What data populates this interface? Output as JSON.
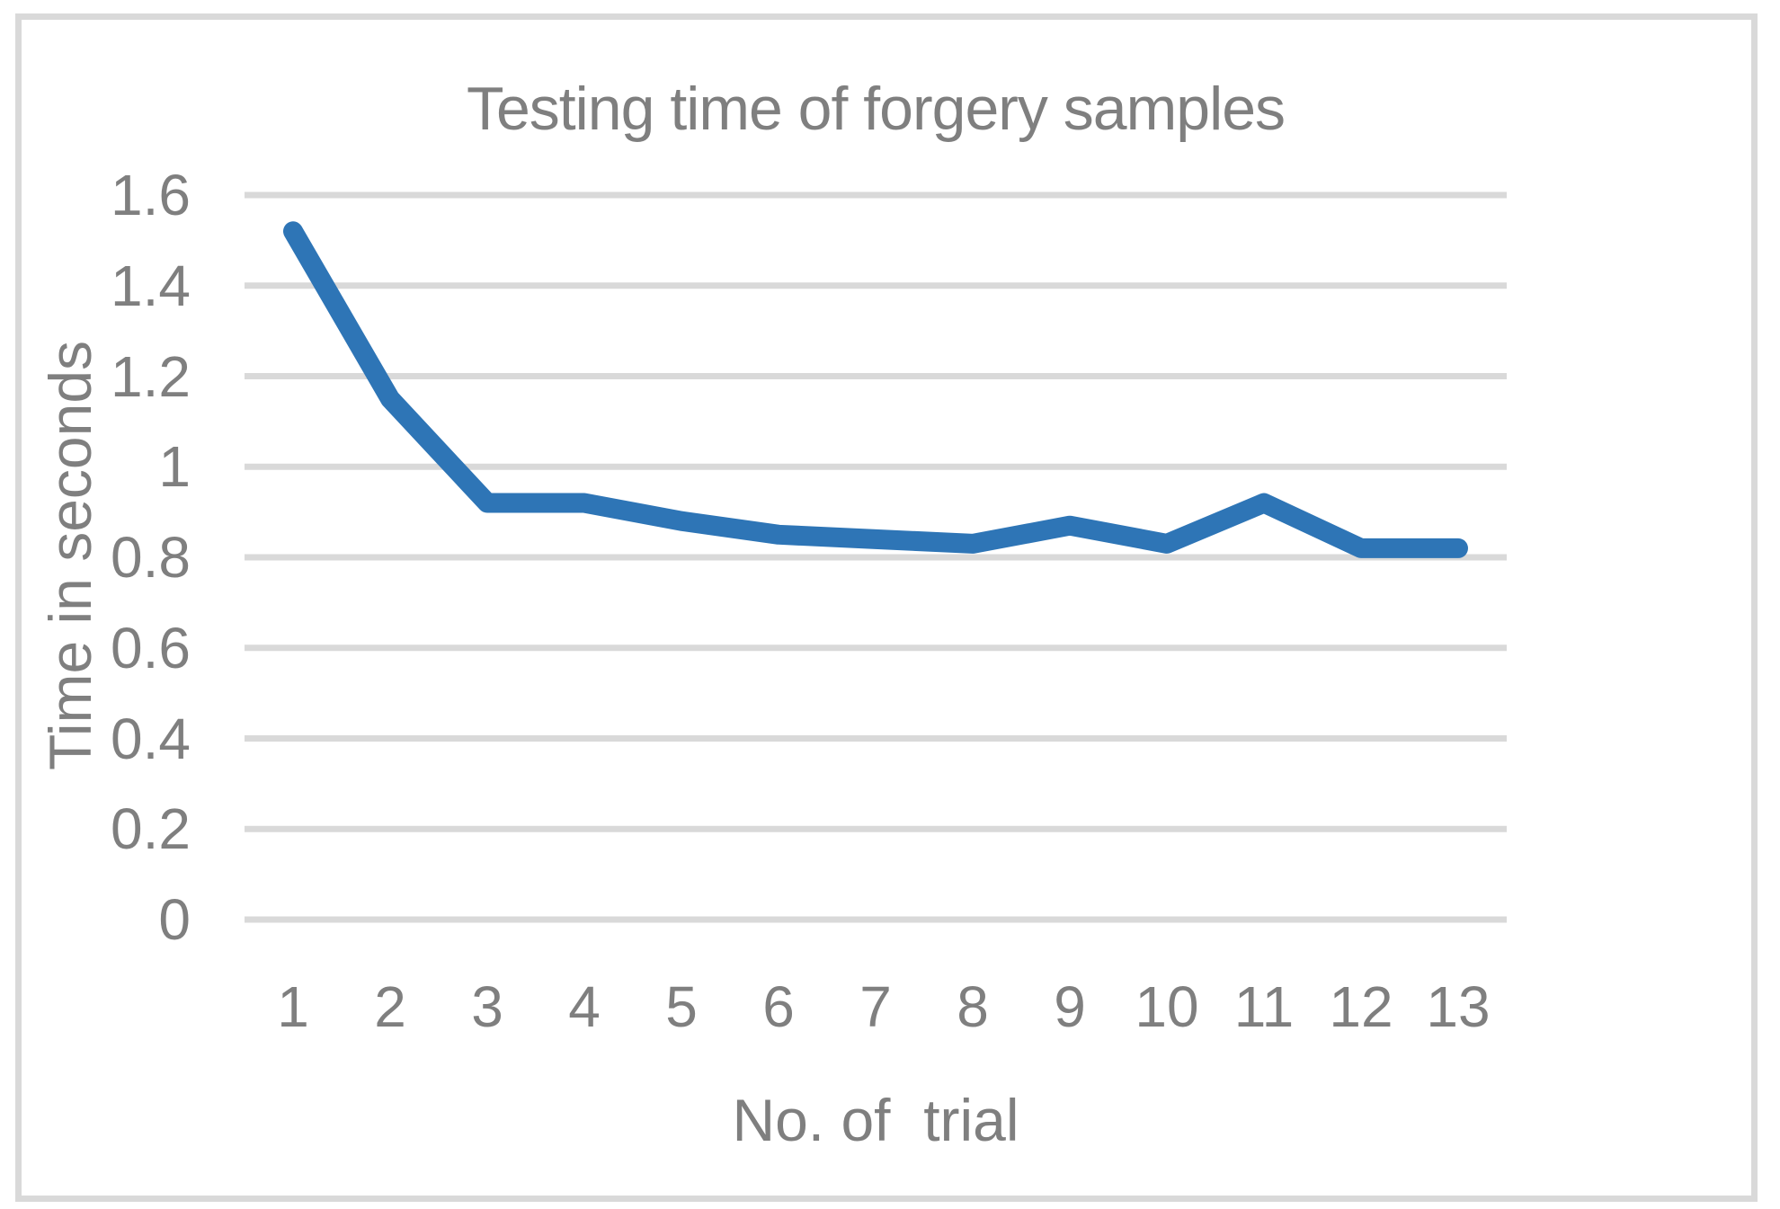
{
  "chart_data": {
    "type": "line",
    "title": "Testing time of forgery samples",
    "xlabel": "No. of  trial",
    "ylabel": "Time in seconds",
    "categories": [
      "1",
      "2",
      "3",
      "4",
      "5",
      "6",
      "7",
      "8",
      "9",
      "10",
      "11",
      "12",
      "13"
    ],
    "series": [
      {
        "name": "Testing time of forgery samples",
        "values": [
          1.52,
          1.15,
          0.92,
          0.92,
          0.88,
          0.85,
          0.84,
          0.83,
          0.87,
          0.83,
          0.92,
          0.82,
          0.82
        ]
      }
    ],
    "ylim": [
      0,
      1.6
    ],
    "ytick_step": 0.2,
    "ytick_labels": [
      "0",
      "0.2",
      "0.4",
      "0.6",
      "0.8",
      "1",
      "1.2",
      "1.4",
      "1.6"
    ],
    "grid": "horizontal-only",
    "legend_position": "none",
    "colors": {
      "line": "#2E75B6",
      "gridline": "#D9D9D9",
      "frame": "#D9D9D9",
      "text": "#7F7F7F",
      "background": "#FFFFFF"
    }
  }
}
